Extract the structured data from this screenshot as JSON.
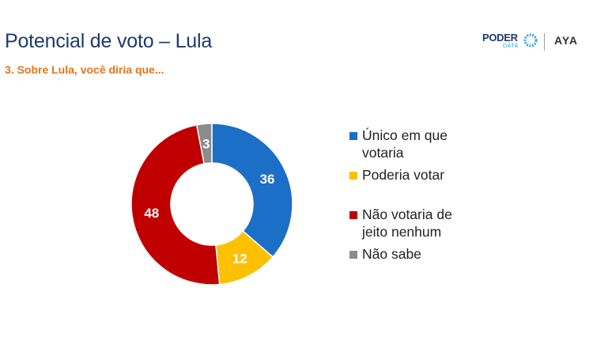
{
  "header": {
    "title": "Potencial de voto – Lula",
    "subtitle": "3. Sobre Lula, você diria que..."
  },
  "logos": {
    "poder": "PODER",
    "data": "DATA",
    "aya": "AYA"
  },
  "chart_data": {
    "type": "pie",
    "donut": true,
    "title": "",
    "legend_position": "right",
    "series": [
      {
        "label": "Único em que votaria",
        "value": 36,
        "color": "#1b6fc6"
      },
      {
        "label": "Poderia votar",
        "value": 12,
        "color": "#ffc000"
      },
      {
        "label": "Não votaria de jeito nenhum",
        "value": 48,
        "color": "#c00000"
      },
      {
        "label": "Não sabe",
        "value": 3,
        "color": "#8c8c8c"
      }
    ]
  }
}
